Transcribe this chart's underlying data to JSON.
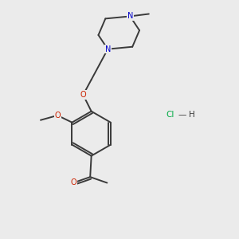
{
  "background_color": "#ebebeb",
  "bond_color": "#3a3a3a",
  "atom_colors": {
    "N": "#0000cc",
    "O": "#cc2200",
    "Cl": "#00aa44",
    "H": "#3a3a3a",
    "C": "#3a3a3a"
  },
  "bond_width": 1.4,
  "font_size_atom": 7.0,
  "figsize": [
    3.0,
    3.0
  ],
  "dpi": 100
}
